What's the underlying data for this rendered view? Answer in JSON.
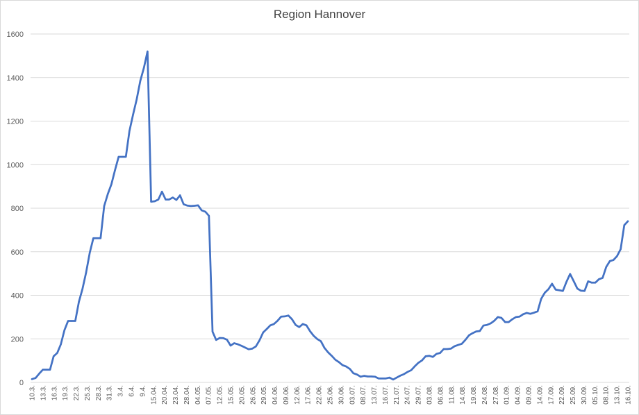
{
  "chart_data": {
    "type": "line",
    "title": "Region Hannover",
    "xlabel": "",
    "ylabel": "",
    "ylim": [
      0,
      1600
    ],
    "yticks": [
      0,
      200,
      400,
      600,
      800,
      1000,
      1200,
      1400,
      1600
    ],
    "grid": true,
    "legend": "none",
    "series_color": "#4472c4",
    "x_tick_labels": [
      "10.3.",
      "13.3.",
      "16.3.",
      "19.3.",
      "22.3.",
      "25.3.",
      "28.3.",
      "31.3.",
      "3.4.",
      "6.4.",
      "9.4.",
      "15.04.",
      "20.04.",
      "23.04.",
      "28.04.",
      "04.05.",
      "07.05.",
      "12.05.",
      "15.05.",
      "20.05.",
      "26.05.",
      "29.05.",
      "04.06.",
      "09.06.",
      "12.06.",
      "17.06.",
      "22.06.",
      "25.06.",
      "30.06.",
      "03.07.",
      "08.07.",
      "13.07.",
      "16.07.",
      "21.07.",
      "24.07.",
      "29.07.",
      "03.08.",
      "06.08.",
      "11.08.",
      "14.08.",
      "19.08.",
      "24.08.",
      "27.08.",
      "01.09.",
      "04.09.",
      "09.09.",
      "14.09.",
      "17.09.",
      "22.09.",
      "25.09.",
      "30.09.",
      "05.10.",
      "08.10.",
      "13.10.",
      "16.10."
    ],
    "values": [
      15,
      20,
      40,
      58,
      58,
      58,
      120,
      135,
      175,
      240,
      282,
      282,
      282,
      370,
      430,
      505,
      595,
      662,
      662,
      662,
      810,
      865,
      910,
      975,
      1036,
      1036,
      1036,
      1155,
      1230,
      1300,
      1385,
      1445,
      1520,
      830,
      832,
      840,
      876,
      840,
      840,
      849,
      838,
      859,
      818,
      812,
      810,
      811,
      813,
      790,
      784,
      765,
      233,
      195,
      204,
      203,
      196,
      169,
      180,
      175,
      168,
      160,
      152,
      155,
      165,
      193,
      229,
      245,
      262,
      268,
      283,
      302,
      303,
      307,
      290,
      264,
      254,
      268,
      262,
      235,
      214,
      199,
      189,
      158,
      138,
      122,
      104,
      93,
      79,
      73,
      62,
      42,
      36,
      26,
      30,
      27,
      27,
      26,
      18,
      18,
      18,
      22,
      13,
      22,
      31,
      38,
      48,
      56,
      74,
      90,
      101,
      120,
      122,
      117,
      131,
      135,
      153,
      153,
      155,
      166,
      172,
      177,
      195,
      216,
      226,
      234,
      236,
      261,
      264,
      271,
      283,
      300,
      296,
      277,
      277,
      290,
      300,
      302,
      313,
      319,
      315,
      320,
      326,
      384,
      412,
      428,
      453,
      426,
      423,
      420,
      462,
      498,
      465,
      431,
      421,
      420,
      464,
      458,
      458,
      474,
      480,
      530,
      557,
      562,
      580,
      612,
      722,
      740
    ]
  }
}
